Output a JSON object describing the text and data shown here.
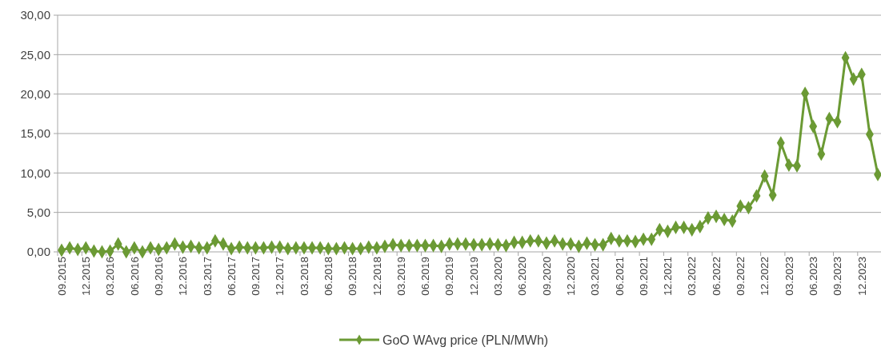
{
  "chart_data": {
    "type": "line",
    "categories": [
      "09.2015",
      null,
      null,
      "12.2015",
      null,
      null,
      "03.2016",
      null,
      null,
      "06.2016",
      null,
      null,
      "09.2016",
      null,
      null,
      "12.2016",
      null,
      null,
      "03.2017",
      null,
      null,
      "06.2017",
      null,
      null,
      "09.2017",
      null,
      null,
      "12.2017",
      null,
      null,
      "03.2018",
      null,
      null,
      "06.2018",
      null,
      null,
      "09.2018",
      null,
      null,
      "12.2018",
      null,
      null,
      "03.2019",
      null,
      null,
      "06.2019",
      null,
      null,
      "09.2019",
      null,
      null,
      "12.2019",
      null,
      null,
      "03.2020",
      null,
      null,
      "06.2020",
      null,
      null,
      "09.2020",
      null,
      null,
      "12.2020",
      null,
      null,
      "03.2021",
      null,
      null,
      "06.2021",
      null,
      null,
      "09.2021",
      null,
      null,
      "12.2021",
      null,
      null,
      "03.2022",
      null,
      null,
      "06.2022",
      null,
      null,
      "09.2022",
      null,
      null,
      "12.2022",
      null,
      null,
      "03.2023",
      null,
      null,
      "06.2023",
      null,
      null,
      "09.2023",
      null,
      null,
      "12.2023",
      null,
      null
    ],
    "series": [
      {
        "name": "GoO WAvg price (PLN/MWh)",
        "color": "#6b9a34",
        "values": [
          0.2,
          0.5,
          0.3,
          0.5,
          0.1,
          0.0,
          0.1,
          1.0,
          0.0,
          0.5,
          0.0,
          0.5,
          0.3,
          0.5,
          1.0,
          0.6,
          0.7,
          0.5,
          0.5,
          1.4,
          1.0,
          0.4,
          0.6,
          0.5,
          0.5,
          0.5,
          0.6,
          0.6,
          0.4,
          0.5,
          0.5,
          0.5,
          0.5,
          0.4,
          0.4,
          0.5,
          0.4,
          0.4,
          0.6,
          0.5,
          0.7,
          0.9,
          0.8,
          0.8,
          0.8,
          0.8,
          0.8,
          0.7,
          1.0,
          1.0,
          1.0,
          0.9,
          0.9,
          1.0,
          0.9,
          0.8,
          1.2,
          1.2,
          1.4,
          1.4,
          1.1,
          1.4,
          1.0,
          1.0,
          0.7,
          1.1,
          0.9,
          0.9,
          1.7,
          1.4,
          1.4,
          1.3,
          1.6,
          1.6,
          2.8,
          2.6,
          3.1,
          3.1,
          2.8,
          3.2,
          4.3,
          4.5,
          4.1,
          3.9,
          5.8,
          5.6,
          7.1,
          9.6,
          7.2,
          13.8,
          11.0,
          10.9,
          20.1,
          15.9,
          12.4,
          16.9,
          16.5,
          24.6,
          21.9,
          22.5,
          14.9,
          9.8
        ]
      }
    ],
    "ylim": [
      0,
      30
    ],
    "yticks": [
      {
        "value": 0,
        "label": "0,00"
      },
      {
        "value": 5,
        "label": "5,00"
      },
      {
        "value": 10,
        "label": "10,00"
      },
      {
        "value": 15,
        "label": "15,00"
      },
      {
        "value": 20,
        "label": "20,00"
      },
      {
        "value": 25,
        "label": "25,00"
      },
      {
        "value": 30,
        "label": "30,00"
      }
    ],
    "grid": "y",
    "legend": "bottom",
    "marker": "diamond",
    "line_style": "solid"
  }
}
